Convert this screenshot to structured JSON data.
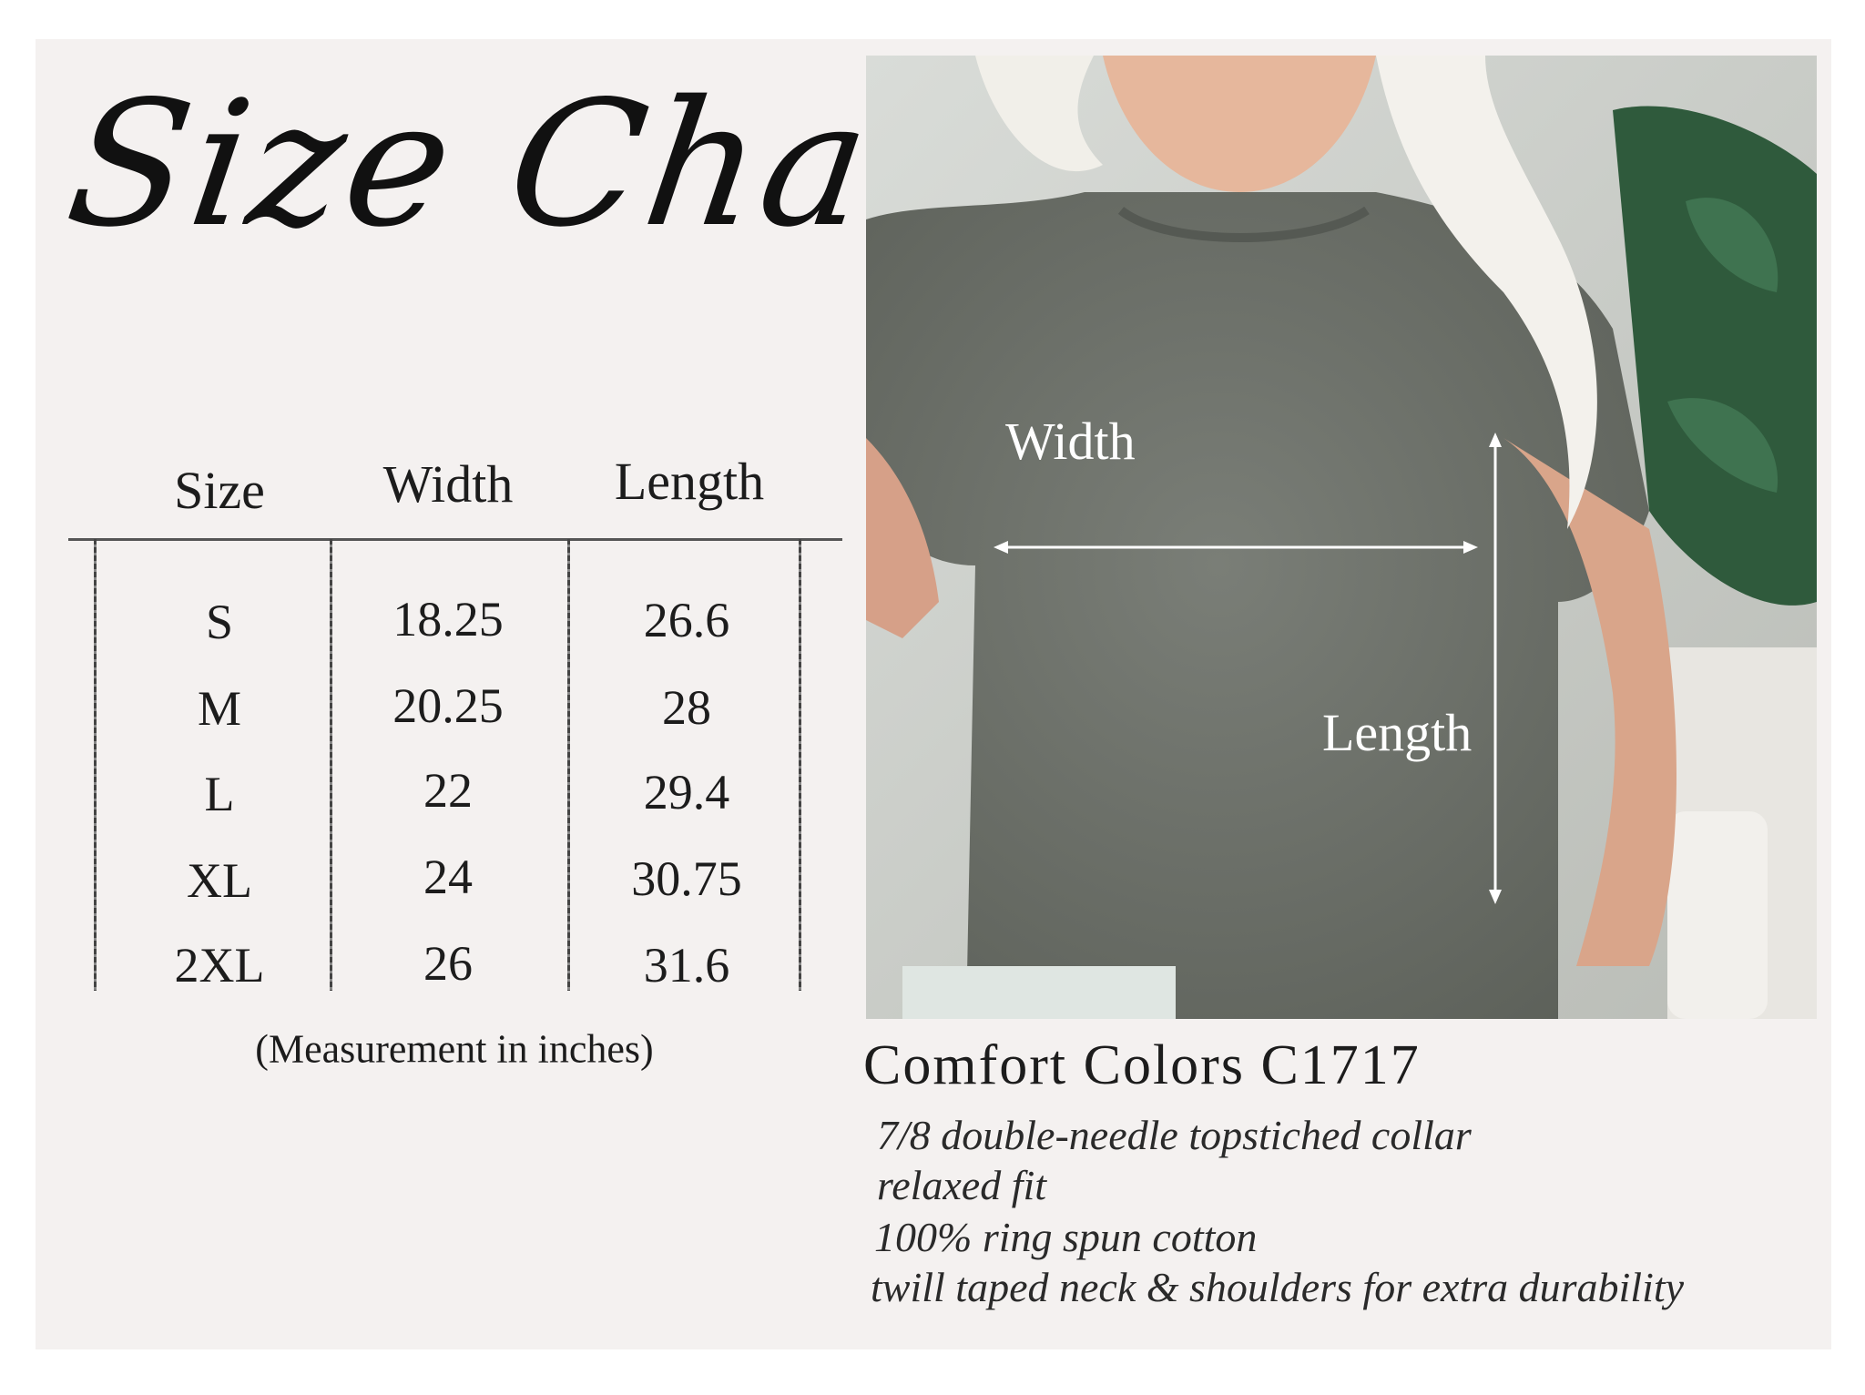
{
  "title": "Size Chart",
  "table": {
    "headers": [
      "Size",
      "Width",
      "Length"
    ],
    "rows": [
      [
        "S",
        "18.25",
        "26.6"
      ],
      [
        "M",
        "20.25",
        "28"
      ],
      [
        "L",
        "22",
        "29.4"
      ],
      [
        "XL",
        "24",
        "30.75"
      ],
      [
        "2XL",
        "26",
        "31.6"
      ]
    ],
    "note": "(Measurement in inches)"
  },
  "photo": {
    "width_label": "Width",
    "length_label": "Length",
    "shirt_color": "#6f736c"
  },
  "product": {
    "name": "Comfort Colors C1717",
    "features": [
      "7/8 double-needle topstiched collar",
      "relaxed fit",
      "100% ring spun cotton",
      "twill taped neck & shoulders for extra durability"
    ]
  }
}
